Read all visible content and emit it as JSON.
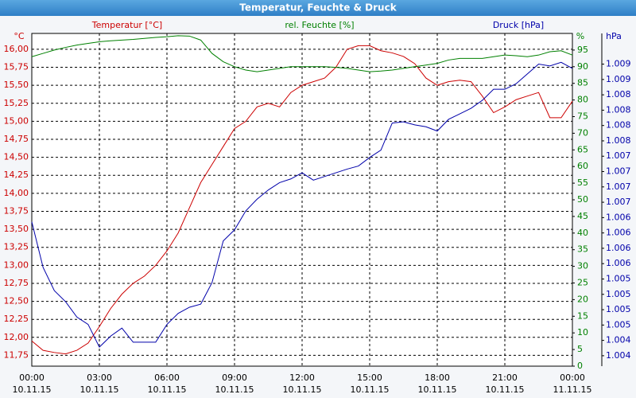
{
  "chart_data": {
    "type": "line",
    "title": "Temperatur, Feuchte & Druck",
    "y_label": "Temperatur [°C]",
    "y2_label": "rel. Feuchte [%]",
    "y3_label": "Druck [hPa]",
    "y_unit": "°C",
    "y2_unit": "%",
    "y3_unit": "hPa",
    "x": [
      0,
      0.5,
      1,
      1.5,
      2,
      2.5,
      3,
      3.5,
      4,
      4.5,
      5,
      5.5,
      6,
      6.5,
      7,
      7.5,
      8,
      8.5,
      9,
      9.5,
      10,
      10.5,
      11,
      11.5,
      12,
      12.5,
      13,
      13.5,
      14,
      14.5,
      15,
      15.5,
      16,
      16.5,
      17,
      17.5,
      18,
      18.5,
      19,
      19.5,
      20,
      20.5,
      21,
      21.5,
      22,
      22.5,
      23,
      23.5,
      24
    ],
    "xlim": [
      0,
      24
    ],
    "xticks": [
      {
        "value": 0,
        "label": "00:00"
      },
      {
        "value": 3,
        "label": "03:00"
      },
      {
        "value": 6,
        "label": "06:00"
      },
      {
        "value": 9,
        "label": "09:00"
      },
      {
        "value": 12,
        "label": "12:00"
      },
      {
        "value": 15,
        "label": "15:00"
      },
      {
        "value": 18,
        "label": "18:00"
      },
      {
        "value": 21,
        "label": "21:00"
      },
      {
        "value": 24,
        "label": "00:00"
      }
    ],
    "xtick_dates": [
      "10.11.15",
      "10.11.15",
      "10.11.15",
      "10.11.15",
      "10.11.15",
      "10.11.15",
      "10.11.15",
      "10.11.15",
      "11.11.15"
    ],
    "ylim": [
      11.6,
      16.22
    ],
    "yticks": [
      {
        "value": 11.75,
        "label": "11,75"
      },
      {
        "value": 12,
        "label": "12,00"
      },
      {
        "value": 12.25,
        "label": "12,25"
      },
      {
        "value": 12.5,
        "label": "12,50"
      },
      {
        "value": 12.75,
        "label": "12,75"
      },
      {
        "value": 13,
        "label": "13,00"
      },
      {
        "value": 13.25,
        "label": "13,25"
      },
      {
        "value": 13.5,
        "label": "13,50"
      },
      {
        "value": 13.75,
        "label": "13,75"
      },
      {
        "value": 14,
        "label": "14,00"
      },
      {
        "value": 14.25,
        "label": "14,25"
      },
      {
        "value": 14.5,
        "label": "14,50"
      },
      {
        "value": 14.75,
        "label": "14,75"
      },
      {
        "value": 15,
        "label": "15,00"
      },
      {
        "value": 15.25,
        "label": "15,25"
      },
      {
        "value": 15.5,
        "label": "15,50"
      },
      {
        "value": 15.75,
        "label": "15,75"
      },
      {
        "value": 16,
        "label": "16,00"
      }
    ],
    "y2lim": [
      0,
      100
    ],
    "y2ticks": [
      0,
      5,
      10,
      15,
      20,
      25,
      30,
      35,
      40,
      45,
      50,
      55,
      60,
      65,
      70,
      75,
      80,
      85,
      90,
      95
    ],
    "y3lim": [
      1.00383,
      1.00925
    ],
    "y3ticks": [
      {
        "value": 1.004,
        "label": "1.004"
      },
      {
        "value": 1.00425,
        "label": "1.004"
      },
      {
        "value": 1.0045,
        "label": "1.005"
      },
      {
        "value": 1.00475,
        "label": "1.005"
      },
      {
        "value": 1.005,
        "label": "1.005"
      },
      {
        "value": 1.00525,
        "label": "1.005"
      },
      {
        "value": 1.0055,
        "label": "1.006"
      },
      {
        "value": 1.00575,
        "label": "1.006"
      },
      {
        "value": 1.006,
        "label": "1.006"
      },
      {
        "value": 1.00625,
        "label": "1.006"
      },
      {
        "value": 1.0065,
        "label": "1.007"
      },
      {
        "value": 1.00675,
        "label": "1.007"
      },
      {
        "value": 1.007,
        "label": "1.007"
      },
      {
        "value": 1.00725,
        "label": "1.007"
      },
      {
        "value": 1.0075,
        "label": "1.008"
      },
      {
        "value": 1.00775,
        "label": "1.008"
      },
      {
        "value": 1.008,
        "label": "1.008"
      },
      {
        "value": 1.00825,
        "label": "1.008"
      },
      {
        "value": 1.0085,
        "label": "1.009"
      },
      {
        "value": 1.00875,
        "label": "1.009"
      }
    ],
    "grid": true,
    "series": [
      {
        "name": "Temperatur [°C]",
        "color": "#cc0000",
        "axis": "y",
        "values": [
          11.95,
          11.82,
          11.79,
          11.77,
          11.82,
          11.92,
          12.15,
          12.4,
          12.6,
          12.75,
          12.85,
          13.0,
          13.2,
          13.45,
          13.8,
          14.15,
          14.4,
          14.65,
          14.9,
          15.0,
          15.2,
          15.25,
          15.2,
          15.4,
          15.5,
          15.55,
          15.6,
          15.75,
          16.0,
          16.05,
          16.05,
          15.98,
          15.95,
          15.9,
          15.8,
          15.6,
          15.5,
          15.55,
          15.57,
          15.55,
          15.35,
          15.12,
          15.2,
          15.3,
          15.35,
          15.4,
          15.05,
          15.05,
          15.28
        ]
      },
      {
        "name": "rel. Feuchte [%]",
        "color": "#008000",
        "axis": "y2",
        "values": [
          93,
          94,
          95,
          95.8,
          96.5,
          97,
          97.5,
          97.8,
          98,
          98.2,
          98.5,
          98.8,
          99,
          99.3,
          99.2,
          98,
          94,
          91.5,
          90,
          89,
          88.5,
          89,
          89.5,
          90,
          90,
          90,
          90,
          89.8,
          89.5,
          89,
          88.5,
          88.7,
          89,
          89.5,
          90,
          90.5,
          91,
          92,
          92.5,
          92.5,
          92.5,
          93,
          93.5,
          93.3,
          93,
          93.5,
          94.5,
          94.8,
          93.5
        ]
      },
      {
        "name": "Druck [hPa]",
        "color": "#0000aa",
        "axis": "y3",
        "values": [
          1.00618,
          1.00544,
          1.00506,
          1.00488,
          1.00463,
          1.00451,
          1.00414,
          1.00432,
          1.00445,
          1.00422,
          1.00422,
          1.00422,
          1.00451,
          1.00469,
          1.00479,
          1.00484,
          1.00519,
          1.00587,
          1.00605,
          1.00636,
          1.00655,
          1.0067,
          1.00682,
          1.00688,
          1.00698,
          1.00686,
          1.00692,
          1.00698,
          1.00704,
          1.00709,
          1.00723,
          1.00735,
          1.00779,
          1.00781,
          1.00776,
          1.00773,
          1.00766,
          1.00785,
          1.00794,
          1.00803,
          1.00816,
          1.00834,
          1.00834,
          1.00843,
          1.00859,
          1.00875,
          1.00872,
          1.00878,
          1.00868
        ]
      }
    ]
  }
}
